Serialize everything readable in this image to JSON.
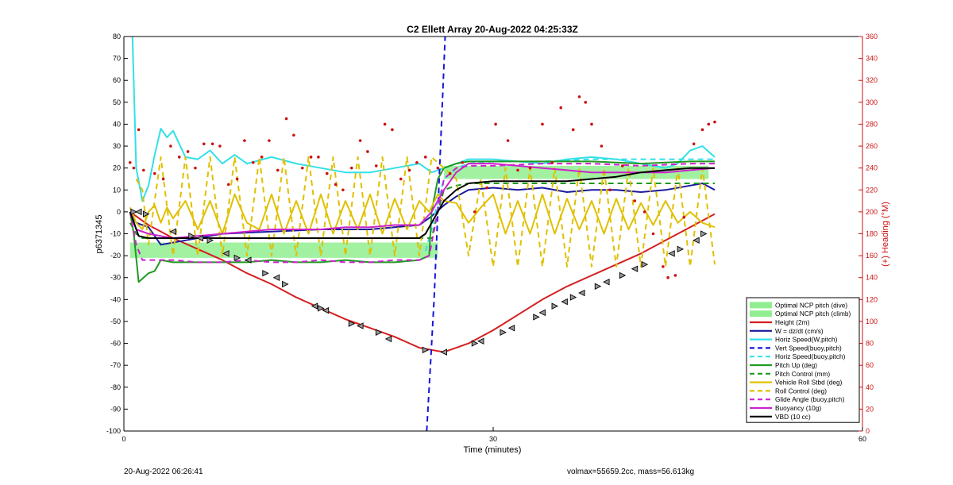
{
  "chart_data": {
    "type": "line",
    "title": "C2 Ellett Array 20-Aug-2022 04:25:33Z",
    "xlabel": "Time (minutes)",
    "ylabel": "p6371345",
    "y2label": "(+) Heading (°M)",
    "xlim": [
      0,
      60
    ],
    "ylim": [
      -100,
      80
    ],
    "y2lim": [
      0,
      360
    ],
    "xticks": [
      0,
      30,
      60
    ],
    "yticks": [
      -100,
      -90,
      -80,
      -70,
      -60,
      -50,
      -40,
      -30,
      -20,
      -10,
      0,
      10,
      20,
      30,
      40,
      50,
      60,
      70,
      80
    ],
    "y2ticks": [
      0,
      20,
      40,
      60,
      80,
      100,
      120,
      140,
      160,
      180,
      200,
      220,
      240,
      260,
      280,
      300,
      320,
      340,
      360
    ],
    "grid": false,
    "legend_position": "bottom-right",
    "bands": [
      {
        "name": "Optimal NCP pitch (dive)",
        "color": "#90ee90",
        "x": [
          0.5,
          25.5
        ],
        "y": [
          -14,
          -21
        ]
      },
      {
        "name": "Optimal NCP pitch (climb)",
        "color": "#90ee90",
        "x": [
          26,
          47.5
        ],
        "y": [
          15,
          21
        ]
      }
    ],
    "series": [
      {
        "name": "Height (2m)",
        "color": "#d42020",
        "style": "solid",
        "x": [
          0.5,
          2,
          4,
          6,
          8,
          10,
          12,
          14,
          16,
          18,
          20,
          22,
          24,
          25,
          26,
          28,
          30,
          32,
          34,
          36,
          38,
          40,
          42,
          44,
          46,
          48
        ],
        "y": [
          0,
          -6,
          -12,
          -17,
          -22,
          -28,
          -33,
          -39,
          -44,
          -49,
          -53,
          -57,
          -62,
          -63,
          -64,
          -60,
          -54,
          -47,
          -40,
          -34,
          -29,
          -24,
          -19,
          -13,
          -7,
          -1
        ]
      },
      {
        "name": "W = dz/dt (cm/s)",
        "color": "#1a1aa0",
        "style": "solid",
        "x": [
          0.5,
          1,
          2,
          3,
          5,
          8,
          12,
          16,
          20,
          24,
          25,
          26,
          27,
          28,
          30,
          32,
          34,
          36,
          38,
          40,
          42,
          44,
          46,
          47,
          48
        ],
        "y": [
          0,
          -5,
          -7,
          -15,
          -13,
          -10,
          -9,
          -8,
          -8,
          -6,
          -2,
          3,
          7,
          10,
          11,
          10,
          11,
          9,
          10,
          10,
          9,
          10,
          12,
          13,
          10
        ]
      },
      {
        "name": "Horiz Speed(W,pitch)",
        "color": "#33e0e8",
        "style": "solid",
        "x": [
          0.7,
          1,
          1.5,
          2,
          2.5,
          3,
          3.5,
          4,
          5,
          6,
          7,
          8,
          9,
          10,
          12,
          14,
          16,
          18,
          20,
          22,
          24,
          25,
          26,
          27,
          28,
          30,
          32,
          34,
          36,
          38,
          40,
          42,
          44,
          45,
          46,
          47,
          48
        ],
        "y": [
          80,
          20,
          5,
          12,
          26,
          38,
          34,
          37,
          25,
          24,
          28,
          22,
          26,
          22,
          25,
          22,
          20,
          18,
          18,
          20,
          22,
          18,
          20,
          22,
          24,
          24,
          23,
          22,
          24,
          25,
          24,
          22,
          20,
          22,
          28,
          30,
          25
        ]
      },
      {
        "name": "Vert Speed(buoy,pitch)",
        "color": "#1515d8",
        "style": "dashed",
        "x": [
          24.6,
          24.9,
          25.2,
          25.5,
          25.8,
          26.1
        ],
        "y": [
          -100,
          -70,
          -40,
          0,
          40,
          80
        ]
      },
      {
        "name": "Horiz Speed(buoy,pitch)",
        "color": "#33e0e8",
        "style": "dashed",
        "x": [
          24.5,
          25,
          25.5,
          26,
          27,
          28,
          30,
          34,
          38,
          42,
          46,
          48
        ],
        "y": [
          -18,
          -8,
          5,
          15,
          20,
          22,
          23,
          23,
          24,
          24,
          24,
          24
        ]
      },
      {
        "name": "Pitch Up (deg)",
        "color": "#1f9a1f",
        "style": "solid",
        "x": [
          0.5,
          0.8,
          1.2,
          1.6,
          2,
          2.5,
          3,
          4,
          6,
          8,
          10,
          12,
          14,
          16,
          18,
          20,
          22,
          24,
          24.8,
          25,
          25.5,
          26,
          27,
          28,
          30,
          34,
          38,
          42,
          46,
          48
        ],
        "y": [
          0,
          -10,
          -32,
          -30,
          -28,
          -27,
          -22,
          -23,
          -23,
          -23,
          -23,
          -22,
          -23,
          -23,
          -22,
          -23,
          -23,
          -22,
          -20,
          0,
          15,
          20,
          22,
          23,
          23,
          23,
          23,
          22,
          23,
          23
        ]
      },
      {
        "name": "Pitch Control (mm)",
        "color": "#1f9a1f",
        "style": "dashed",
        "x": [
          0.5,
          1,
          1.5,
          25,
          25.5,
          26,
          27,
          28,
          48
        ],
        "y": [
          -5,
          -10,
          -12,
          -12,
          0,
          10,
          12,
          13,
          13
        ]
      },
      {
        "name": "Vehicle Roll Stbd (deg)",
        "color": "#e0c000",
        "style": "solid",
        "x": [
          0.5,
          1,
          1.5,
          2,
          2.5,
          3,
          3.5,
          4,
          5,
          6,
          7,
          8,
          9,
          10,
          11,
          12,
          13,
          14,
          15,
          16,
          17,
          18,
          19,
          20,
          21,
          22,
          23,
          24,
          24.8,
          25.5,
          26,
          27,
          28,
          29,
          30,
          31,
          32,
          33,
          34,
          35,
          36,
          37,
          38,
          39,
          40,
          41,
          42,
          43,
          44,
          45,
          46,
          47,
          48
        ],
        "y": [
          2,
          -5,
          -8,
          0,
          3,
          -5,
          2,
          -3,
          5,
          -8,
          5,
          -10,
          8,
          -5,
          -8,
          8,
          -10,
          5,
          -10,
          8,
          -10,
          5,
          -8,
          8,
          -10,
          6,
          -8,
          5,
          0,
          8,
          5,
          4,
          -5,
          2,
          8,
          -10,
          5,
          -10,
          8,
          -10,
          6,
          -8,
          5,
          -10,
          6,
          -8,
          4,
          -6,
          5,
          -5,
          0,
          -5,
          -7
        ]
      },
      {
        "name": "Roll Control (deg)",
        "color": "#e0c000",
        "style": "dashed",
        "x": [
          1,
          1.5,
          2,
          3,
          4,
          5,
          6,
          7,
          8,
          9,
          10,
          11,
          12,
          13,
          14,
          15,
          16,
          17,
          18,
          19,
          20,
          21,
          22,
          23,
          24,
          25,
          26,
          27,
          28,
          29,
          30,
          31,
          32,
          33,
          34,
          35,
          36,
          37,
          38,
          39,
          40,
          41,
          42,
          43,
          44,
          45,
          46,
          47,
          48
        ],
        "y": [
          15,
          10,
          -15,
          25,
          -20,
          25,
          -20,
          25,
          -20,
          25,
          -20,
          25,
          -20,
          25,
          -20,
          25,
          -20,
          25,
          -20,
          25,
          -20,
          25,
          -20,
          25,
          -20,
          25,
          20,
          15,
          -20,
          15,
          -25,
          20,
          -25,
          20,
          -25,
          20,
          -25,
          20,
          -25,
          20,
          -25,
          20,
          -25,
          20,
          -25,
          20,
          -25,
          20,
          -24
        ]
      },
      {
        "name": "Glide Angle (buoy,pitch)",
        "color": "#cc22cc",
        "style": "dashed",
        "x": [
          0.5,
          1,
          1.5,
          2,
          4,
          6,
          8,
          10,
          12,
          14,
          16,
          18,
          20,
          22,
          24,
          24.8,
          25.5,
          26,
          27,
          28,
          30,
          34,
          38,
          42,
          46,
          48
        ],
        "y": [
          0,
          -15,
          -22,
          -22,
          -22,
          -23,
          -23,
          -22,
          -23,
          -23,
          -22,
          -23,
          -23,
          -22,
          -22,
          -20,
          0,
          15,
          20,
          21,
          21,
          22,
          22,
          21,
          22,
          22
        ]
      },
      {
        "name": "Buoyancy (10g)",
        "color": "#cc22cc",
        "style": "solid",
        "x": [
          0.5,
          1,
          2,
          3,
          4,
          6,
          8,
          10,
          12,
          14,
          16,
          18,
          20,
          22,
          24,
          25,
          26,
          27,
          28,
          30,
          32,
          34,
          36,
          38,
          40,
          42,
          44,
          46,
          48
        ],
        "y": [
          0,
          -8,
          -10,
          -11,
          -12,
          -11,
          -10,
          -9,
          -8,
          -8,
          -8,
          -7,
          -7,
          -6,
          -6,
          0,
          10,
          18,
          22,
          22,
          21,
          20,
          19,
          18,
          18,
          18,
          18,
          19,
          20
        ]
      },
      {
        "name": "VBD (10 cc)",
        "color": "#000000",
        "style": "solid",
        "x": [
          0.5,
          1.2,
          2,
          4,
          6,
          8,
          10,
          12,
          14,
          16,
          18,
          20,
          22,
          24,
          24.5,
          25,
          25.5,
          26,
          27,
          28,
          30,
          32,
          34,
          36,
          38,
          40,
          42,
          44,
          46,
          48
        ],
        "y": [
          0,
          -11,
          -12,
          -12,
          -12,
          -12,
          -12,
          -12,
          -12,
          -12,
          -12,
          -12,
          -12,
          -12,
          -10,
          -5,
          0,
          5,
          10,
          13,
          14,
          14,
          14,
          14,
          15,
          16,
          18,
          19,
          20,
          20
        ]
      }
    ],
    "heading_series": {
      "name": "Heading",
      "color": "#cc1111",
      "axis": "right",
      "x": [
        0.5,
        0.8,
        1.2,
        1.6,
        2.5,
        3.2,
        3.8,
        4.5,
        5.2,
        5.8,
        6.5,
        7.2,
        7.8,
        8.5,
        9.2,
        9.8,
        10.5,
        11.2,
        11.8,
        12.5,
        13.2,
        13.8,
        14.5,
        15.2,
        15.8,
        16.5,
        17.2,
        17.8,
        18.5,
        19.2,
        19.8,
        20.5,
        21.2,
        21.8,
        22.5,
        23.2,
        23.8,
        24.5,
        25.5,
        26.5,
        27.5,
        28.5,
        29.5,
        30.2,
        31.2,
        32,
        33,
        34,
        34.8,
        35.5,
        36.5,
        37,
        37.5,
        38,
        38.8,
        39.5,
        40.5,
        41.5,
        42.3,
        43,
        43.8,
        44.2,
        44.8,
        45.5,
        46.3,
        47,
        47.5,
        48
      ],
      "y": [
        245,
        240,
        275,
        238,
        235,
        230,
        260,
        250,
        255,
        240,
        262,
        262,
        260,
        225,
        230,
        265,
        245,
        250,
        265,
        238,
        285,
        270,
        240,
        250,
        250,
        235,
        225,
        220,
        240,
        265,
        255,
        242,
        280,
        275,
        230,
        238,
        245,
        250,
        240,
        235,
        245,
        200,
        222,
        280,
        265,
        238,
        240,
        280,
        245,
        295,
        275,
        305,
        300,
        280,
        260,
        220,
        242,
        210,
        200,
        180,
        150,
        140,
        142,
        195,
        262,
        275,
        280,
        282
      ]
    },
    "marker_series": {
      "name": "Height markers",
      "color": "#000000",
      "x": [
        0.8,
        1.2,
        1.8,
        4,
        5.5,
        6.2,
        7,
        8.3,
        9.2,
        10.1,
        11.5,
        12.4,
        13.1,
        15.5,
        16,
        16.4,
        18.5,
        19.2,
        20.7,
        21.5,
        24.5,
        26,
        28.5,
        29,
        30.8,
        31.5,
        33.5,
        34,
        35,
        35.8,
        36.5,
        37.2,
        38.5,
        39.2,
        40.5,
        41.5,
        42.3,
        44.5,
        45.2,
        46.5,
        47.1
      ],
      "y": [
        0,
        0,
        -1,
        -9,
        -11,
        -12,
        -13,
        -19,
        -21,
        -22,
        -28,
        -30,
        -33,
        -43,
        -44,
        -45,
        -51,
        -52,
        -55,
        -58,
        -63,
        -64,
        -60,
        -59,
        -55,
        -53,
        -48,
        -46,
        -43,
        -41,
        -39,
        -37,
        -34,
        -32,
        -29,
        -26,
        -24,
        -19,
        -17,
        -13,
        -10
      ]
    },
    "legend": [
      "Optimal NCP pitch (dive)",
      "Optimal NCP pitch (climb)",
      "Height (2m)",
      "W = dz/dt (cm/s)",
      "Horiz Speed(W,pitch)",
      "Vert Speed(buoy,pitch)",
      "Horiz Speed(buoy,pitch)",
      "Pitch Up (deg)",
      "Pitch Control (mm)",
      "Vehicle Roll Stbd (deg)",
      "Roll Control (deg)",
      "Glide Angle (buoy,pitch)",
      "Buoyancy (10g)",
      "VBD (10 cc)"
    ]
  },
  "footer": {
    "timestamp": "20-Aug-2022 06:26:41",
    "summary": "volmax=55659.2cc, mass=56.613kg"
  }
}
